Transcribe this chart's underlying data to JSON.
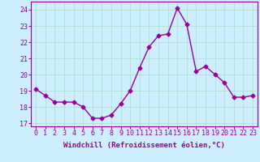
{
  "x": [
    0,
    1,
    2,
    3,
    4,
    5,
    6,
    7,
    8,
    9,
    10,
    11,
    12,
    13,
    14,
    15,
    16,
    17,
    18,
    19,
    20,
    21,
    22,
    23
  ],
  "y": [
    19.1,
    18.7,
    18.3,
    18.3,
    18.3,
    18.0,
    17.3,
    17.3,
    17.5,
    18.2,
    19.0,
    20.4,
    21.7,
    22.4,
    22.5,
    24.1,
    23.1,
    20.2,
    20.5,
    20.0,
    19.5,
    18.6,
    18.6,
    18.7
  ],
  "line_color": "#990099",
  "marker": "D",
  "marker_size": 2.5,
  "bg_color": "#cceeff",
  "grid_color": "#aaddcc",
  "xlabel": "Windchill (Refroidissement éolien,°C)",
  "ylabel_ticks": [
    17,
    18,
    19,
    20,
    21,
    22,
    23,
    24
  ],
  "xlim": [
    -0.5,
    23.5
  ],
  "ylim": [
    16.8,
    24.5
  ],
  "xlabel_fontsize": 6.5,
  "tick_fontsize": 6.0,
  "label_color": "#990099"
}
